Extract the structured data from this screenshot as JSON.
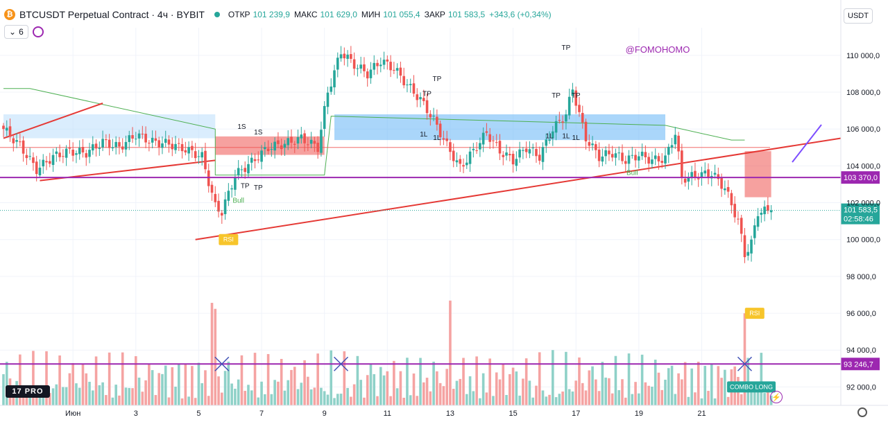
{
  "header": {
    "coin_glyph": "₿",
    "symbol": "BTCUSDT Perpetual Contract · 4ч · BYBIT",
    "ohlc": [
      {
        "k": "ОТКР",
        "v": "101 239,9"
      },
      {
        "k": "МАКС",
        "v": "101 629,0"
      },
      {
        "k": "МИН",
        "v": "101 055,4"
      },
      {
        "k": "ЗАКР",
        "v": "101 583,5"
      },
      {
        "k": "",
        "v": "+343,6 (+0,34%)"
      }
    ],
    "indicator_count": "6",
    "currency": "USDT"
  },
  "logo": "17 PRO",
  "colors": {
    "up": "#26a69a",
    "down": "#ef5350",
    "purple": "#9c27b0",
    "vol_up": "#8fd1c8",
    "vol_down": "#f5a3a2"
  },
  "chart_data": {
    "type": "candlestick",
    "y_axis": {
      "min": 91000,
      "max": 111500,
      "ticks": [
        92000,
        94000,
        96000,
        98000,
        100000,
        102000,
        104000,
        106000,
        108000,
        110000
      ],
      "tick_labels": [
        "92 000,0",
        "94 000,0",
        "96 000,0",
        "98 000,0",
        "100 000,0",
        "102 000,0",
        "104 000,0",
        "106 000,0",
        "108 000,0",
        "110 000,0"
      ]
    },
    "x_axis": {
      "labels": [
        "Июн",
        "3",
        "5",
        "7",
        "9",
        "11",
        "13",
        "15",
        "17",
        "19",
        "21"
      ],
      "label_bar_index": [
        21,
        40,
        59,
        78,
        97,
        116,
        135,
        154,
        173,
        192,
        211
      ]
    },
    "watermark": "@FOMOHOMO",
    "close_anchors": [
      [
        0,
        106000
      ],
      [
        5,
        105100
      ],
      [
        10,
        103800
      ],
      [
        15,
        104500
      ],
      [
        20,
        104800
      ],
      [
        25,
        104700
      ],
      [
        30,
        105300
      ],
      [
        35,
        105000
      ],
      [
        40,
        105700
      ],
      [
        45,
        105300
      ],
      [
        50,
        105200
      ],
      [
        55,
        104900
      ],
      [
        60,
        104500
      ],
      [
        64,
        101800
      ],
      [
        66,
        101500
      ],
      [
        70,
        103500
      ],
      [
        75,
        104200
      ],
      [
        80,
        105000
      ],
      [
        85,
        105200
      ],
      [
        90,
        105500
      ],
      [
        95,
        105000
      ],
      [
        98,
        108000
      ],
      [
        102,
        110200
      ],
      [
        106,
        109500
      ],
      [
        110,
        109000
      ],
      [
        114,
        109700
      ],
      [
        118,
        109300
      ],
      [
        122,
        108400
      ],
      [
        126,
        107600
      ],
      [
        130,
        106500
      ],
      [
        134,
        105100
      ],
      [
        138,
        103900
      ],
      [
        142,
        104800
      ],
      [
        146,
        105800
      ],
      [
        150,
        104800
      ],
      [
        154,
        104300
      ],
      [
        158,
        105000
      ],
      [
        162,
        104500
      ],
      [
        166,
        106000
      ],
      [
        170,
        106800
      ],
      [
        172,
        108200
      ],
      [
        174,
        106800
      ],
      [
        176,
        105500
      ],
      [
        180,
        104500
      ],
      [
        184,
        104700
      ],
      [
        188,
        104300
      ],
      [
        192,
        104600
      ],
      [
        196,
        104300
      ],
      [
        200,
        104400
      ],
      [
        203,
        105800
      ],
      [
        205,
        103300
      ],
      [
        210,
        103500
      ],
      [
        214,
        103600
      ],
      [
        218,
        102800
      ],
      [
        222,
        101000
      ],
      [
        224,
        99200
      ],
      [
        226,
        99800
      ],
      [
        228,
        101500
      ],
      [
        232,
        101583.5
      ]
    ],
    "last_price": {
      "value": 101583.5,
      "label": "101 583,5",
      "countdown": "02:58:46"
    },
    "horizontal_lines": [
      {
        "name": "resistance",
        "value": 103370,
        "label": "103 370,0",
        "color": "#9c27b0"
      },
      {
        "name": "support",
        "value": 93246.7,
        "label": "93 246,7",
        "color": "#9c27b0"
      }
    ],
    "annotations": [
      {
        "text": "TP",
        "kind": "up",
        "bar": 73,
        "price": 102800
      },
      {
        "text": "TP",
        "kind": "up",
        "bar": 77,
        "price": 102700
      },
      {
        "text": "TP",
        "kind": "down",
        "bar": 128,
        "price": 107800
      },
      {
        "text": "TP",
        "kind": "down",
        "bar": 131,
        "price": 108600
      },
      {
        "text": "TP",
        "kind": "down",
        "bar": 170,
        "price": 110300
      },
      {
        "text": "TP",
        "kind": "down",
        "bar": 167,
        "price": 107700
      },
      {
        "text": "TP",
        "kind": "down",
        "bar": 173,
        "price": 107700
      },
      {
        "text": "1L",
        "kind": "up",
        "bar": 127,
        "price": 105600
      },
      {
        "text": "1L",
        "kind": "up",
        "bar": 131,
        "price": 105400
      },
      {
        "text": "1L",
        "kind": "up",
        "bar": 165,
        "price": 105500
      },
      {
        "text": "1L",
        "kind": "up",
        "bar": 170,
        "price": 105500
      },
      {
        "text": "1L",
        "kind": "up",
        "bar": 173,
        "price": 105400
      },
      {
        "text": "1S",
        "kind": "down",
        "bar": 72,
        "price": 106000
      },
      {
        "text": "1S",
        "kind": "down",
        "bar": 77,
        "price": 105700
      },
      {
        "text": "Bull",
        "kind": "label",
        "bar": 71,
        "price": 102000,
        "color": "#4caf50"
      },
      {
        "text": "Bull",
        "kind": "label",
        "bar": 190,
        "price": 103500,
        "color": "#4caf50"
      }
    ],
    "badges": [
      {
        "text": "RSI",
        "bar": 68,
        "price": 100000,
        "color": "#f7c52b"
      },
      {
        "text": "RSI",
        "bar": 227,
        "price": 96000,
        "color": "#f7c52b"
      },
      {
        "text": "COMBO LONG",
        "bar": 226,
        "price": 92000,
        "color": "#26a69a"
      }
    ]
  }
}
